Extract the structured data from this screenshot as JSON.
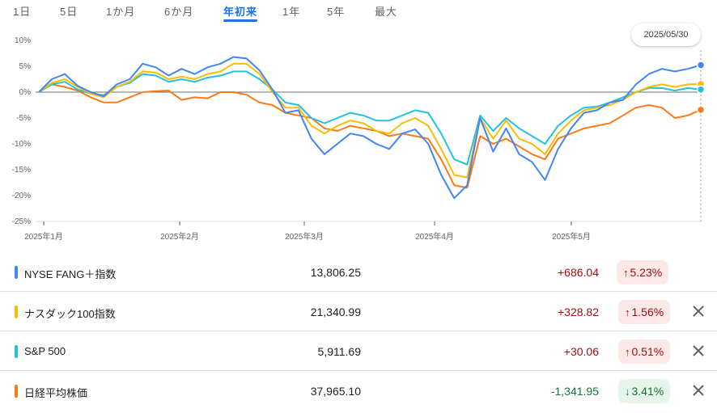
{
  "tabs": [
    {
      "label": "1日",
      "active": false
    },
    {
      "label": "5日",
      "active": false
    },
    {
      "label": "1か月",
      "active": false
    },
    {
      "label": "6か月",
      "active": false
    },
    {
      "label": "年初来",
      "active": true
    },
    {
      "label": "1年",
      "active": false
    },
    {
      "label": "5年",
      "active": false
    },
    {
      "label": "最大",
      "active": false
    }
  ],
  "tooltip_date": "2025/05/30",
  "chart_data": {
    "type": "line",
    "y_ticks": [
      "10%",
      "5%",
      "0%",
      "-5%",
      "-10%",
      "-15%",
      "-20%",
      "-25%"
    ],
    "ylim": [
      -25,
      10
    ],
    "x_ticks": [
      "2025年1月",
      "2025年2月",
      "2025年3月",
      "2025年4月",
      "2025年5月"
    ],
    "series": [
      {
        "name": "NYSE FANG＋指数",
        "color": "#4285f4",
        "values": [
          0,
          2.5,
          3.5,
          1.2,
          0,
          -0.8,
          1.5,
          2.5,
          5.5,
          4.8,
          3.2,
          4.5,
          3.5,
          4.8,
          5.5,
          6.8,
          6.5,
          4.2,
          0.5,
          -4,
          -3.5,
          -9,
          -12,
          -10,
          -8,
          -8.5,
          -10,
          -11,
          -8,
          -7.2,
          -10,
          -16,
          -20.5,
          -18,
          -5,
          -11.5,
          -7,
          -12,
          -13.5,
          -17,
          -11,
          -7,
          -4,
          -3.5,
          -2,
          -1.5,
          1.5,
          3.5,
          4.5,
          4,
          4.5,
          5.23
        ]
      },
      {
        "name": "ナスダック100指数",
        "color": "#fbbc04",
        "values": [
          0,
          1.8,
          2.5,
          1,
          -0.3,
          -1,
          1,
          2,
          4,
          3.8,
          2.5,
          3,
          2.5,
          3.5,
          4,
          5.5,
          5.5,
          3.5,
          0,
          -3,
          -3,
          -6.5,
          -8,
          -6.5,
          -5.5,
          -6,
          -7.5,
          -8,
          -6,
          -5,
          -6.5,
          -11,
          -16,
          -16.5,
          -5,
          -9,
          -5.5,
          -9,
          -10,
          -12,
          -8,
          -5.5,
          -3.5,
          -3,
          -2.5,
          -1.5,
          0,
          1,
          1.5,
          1,
          1.5,
          1.56
        ]
      },
      {
        "name": "S&P 500",
        "color": "#24c1e0",
        "values": [
          0,
          1.5,
          2,
          0.5,
          -0.3,
          -0.6,
          1,
          1.8,
          3.5,
          3.2,
          2,
          2.5,
          2,
          2.8,
          3.2,
          4,
          4,
          2.5,
          0.5,
          -2,
          -2.5,
          -5,
          -6,
          -5,
          -4,
          -4.5,
          -5.5,
          -5.5,
          -4.5,
          -3.5,
          -4,
          -8,
          -13,
          -14,
          -4.5,
          -7.5,
          -5,
          -7,
          -8.5,
          -10,
          -6.5,
          -4.5,
          -3,
          -2.8,
          -2,
          -1,
          0,
          0.8,
          0.8,
          0.3,
          0.8,
          0.51
        ]
      },
      {
        "name": "日経平均株価",
        "color": "#fa7b17",
        "values": [
          0,
          1.5,
          1,
          0.3,
          -1,
          -2,
          -2,
          -1,
          0,
          0.2,
          0.3,
          -1.5,
          -1,
          -1.2,
          0,
          0,
          -0.5,
          -2,
          -2.5,
          -4,
          -4.5,
          -5,
          -7,
          -7.5,
          -6.5,
          -7,
          -7.5,
          -8.5,
          -8,
          -8.5,
          -9,
          -13,
          -18,
          -18.5,
          -8.5,
          -10,
          -9,
          -10.5,
          -12,
          -13,
          -9,
          -8,
          -7,
          -6.5,
          -6,
          -4.5,
          -3,
          -2.5,
          -3,
          -5,
          -4.5,
          -3.41
        ]
      }
    ]
  },
  "rows": [
    {
      "name": "NYSE FANG＋指数",
      "color": "#4285f4",
      "price": "13,806.25",
      "change": "+686.04",
      "pct": "5.23%",
      "direction": "up",
      "arrow": "↑",
      "removable": false
    },
    {
      "name": "ナスダック100指数",
      "color": "#fbbc04",
      "price": "21,340.99",
      "change": "+328.82",
      "pct": "1.56%",
      "direction": "up",
      "arrow": "↑",
      "removable": true
    },
    {
      "name": "S&P 500",
      "color": "#24c1e0",
      "price": "5,911.69",
      "change": "+30.06",
      "pct": "0.51%",
      "direction": "up",
      "arrow": "↑",
      "removable": true
    },
    {
      "name": "日経平均株価",
      "color": "#fa7b17",
      "price": "37,965.10",
      "change": "-1,341.95",
      "pct": "3.41%",
      "direction": "down",
      "arrow": "↓",
      "removable": true
    }
  ]
}
